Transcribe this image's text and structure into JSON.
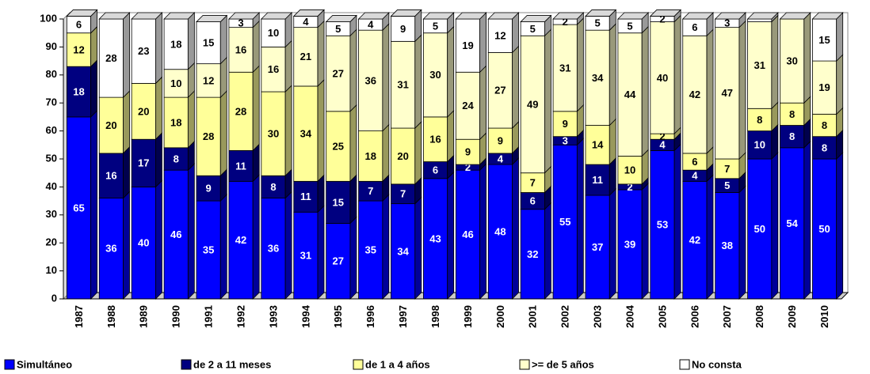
{
  "chart_data": {
    "type": "stacked_bar",
    "categories": [
      "1987",
      "1988",
      "1989",
      "1990",
      "1991",
      "1992",
      "1993",
      "1994",
      "1995",
      "1996",
      "1997",
      "1998",
      "1999",
      "2000",
      "2001",
      "2002",
      "2003",
      "2004",
      "2005",
      "2006",
      "2007",
      "2008",
      "2009",
      "2010"
    ],
    "series": [
      {
        "name": "Simultáneo",
        "color": "#0000ff",
        "values": [
          65,
          36,
          40,
          46,
          35,
          42,
          36,
          31,
          27,
          35,
          34,
          43,
          46,
          48,
          32,
          55,
          37,
          39,
          53,
          42,
          38,
          50,
          54,
          50
        ]
      },
      {
        "name": "de 2 a 11 meses",
        "color": "#000080",
        "values": [
          18,
          16,
          17,
          8,
          9,
          11,
          8,
          11,
          15,
          7,
          7,
          6,
          2,
          4,
          6,
          3,
          11,
          2,
          4,
          4,
          5,
          10,
          8,
          8
        ]
      },
      {
        "name": "de 1 a 4 años",
        "color": "#ffff99",
        "values": [
          12,
          20,
          20,
          18,
          28,
          28,
          30,
          34,
          25,
          18,
          20,
          16,
          9,
          9,
          7,
          9,
          14,
          10,
          2,
          6,
          7,
          8,
          8,
          8
        ]
      },
      {
        "name": ">= de 5 años",
        "color": "#ffffcc",
        "values": [
          0,
          0,
          0,
          10,
          12,
          16,
          16,
          21,
          27,
          36,
          31,
          30,
          24,
          27,
          49,
          31,
          34,
          44,
          40,
          42,
          47,
          31,
          30,
          19
        ]
      },
      {
        "name": "No consta",
        "color": "#ffffff",
        "values": [
          6,
          28,
          23,
          18,
          15,
          3,
          10,
          4,
          5,
          4,
          9,
          5,
          19,
          12,
          5,
          2,
          5,
          5,
          2,
          6,
          3,
          1,
          0,
          15
        ]
      }
    ],
    "ylim": [
      0,
      100
    ],
    "yticks": [
      0,
      10,
      20,
      30,
      40,
      50,
      60,
      70,
      80,
      90,
      100
    ],
    "grid": false
  }
}
